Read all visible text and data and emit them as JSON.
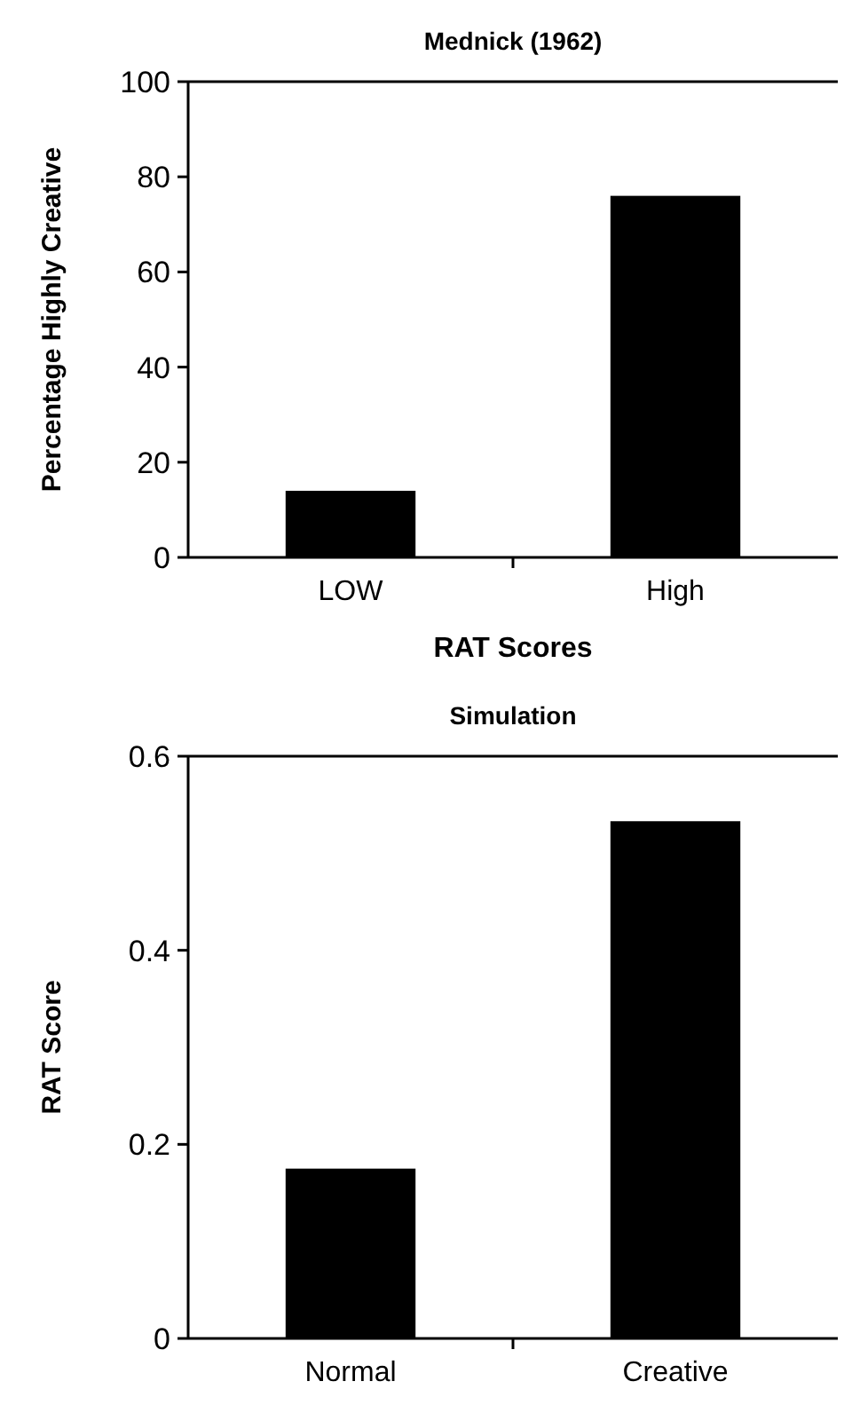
{
  "chart_data": [
    {
      "type": "bar",
      "title": "Mednick (1962)",
      "xlabel": "RAT Scores",
      "ylabel": "Percentage Highly Creative",
      "categories": [
        "LOW",
        "High"
      ],
      "values": [
        14,
        76
      ],
      "color": "#000000",
      "ylim": [
        0,
        100
      ],
      "yticks": [
        0,
        20,
        40,
        60,
        80,
        100
      ],
      "grid": false
    },
    {
      "type": "bar",
      "title": "Simulation",
      "ylabel": "RAT Score",
      "categories": [
        "Normal",
        "Creative"
      ],
      "values": [
        0.175,
        0.533
      ],
      "color": "#000000",
      "ylim": [
        0,
        0.6
      ],
      "yticks": [
        0,
        0.2,
        0.4,
        0.6
      ],
      "grid": false
    }
  ]
}
